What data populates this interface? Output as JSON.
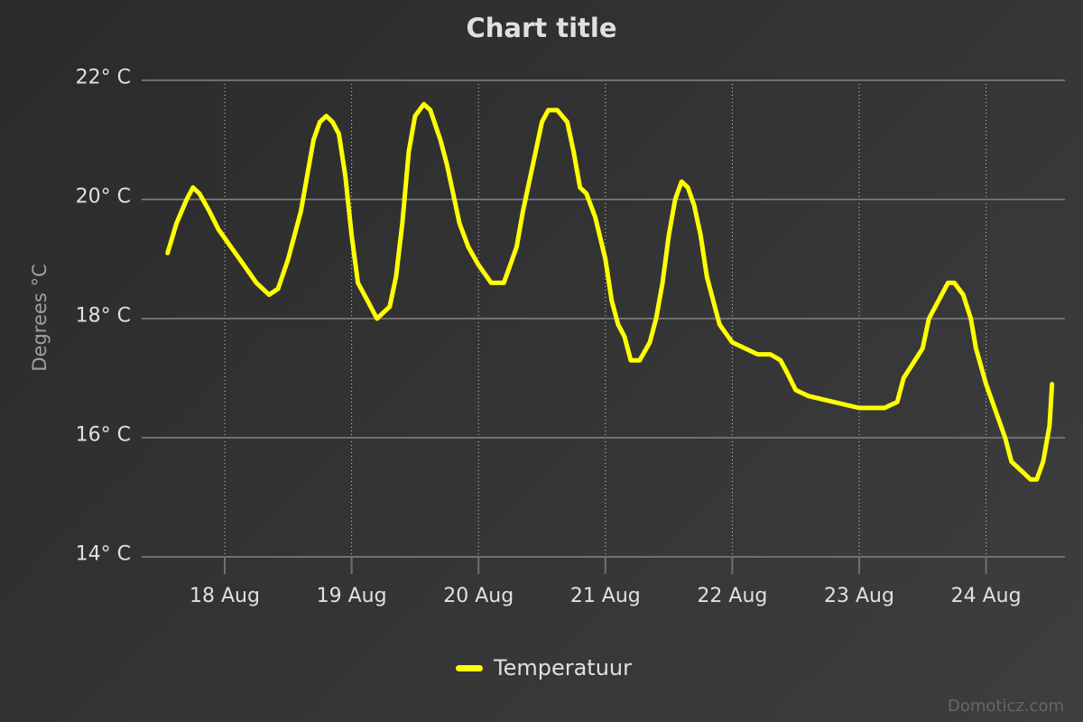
{
  "chart": {
    "title": "Chart title",
    "yaxis_title": "Degrees °C",
    "credits": "Domoticz.com",
    "background": [
      "#2a2a2b",
      "#3e3e40"
    ],
    "grid_color": "#707073",
    "series_color": "#ffff00"
  },
  "y_ticks": [
    {
      "label": "22° C",
      "value": 22
    },
    {
      "label": "20° C",
      "value": 20
    },
    {
      "label": "18° C",
      "value": 18
    },
    {
      "label": "16° C",
      "value": 16
    },
    {
      "label": "14° C",
      "value": 14
    }
  ],
  "x_ticks": [
    {
      "label": "18 Aug",
      "value": 0
    },
    {
      "label": "19 Aug",
      "value": 1
    },
    {
      "label": "20 Aug",
      "value": 2
    },
    {
      "label": "21 Aug",
      "value": 3
    },
    {
      "label": "22 Aug",
      "value": 4
    },
    {
      "label": "23 Aug",
      "value": 5
    },
    {
      "label": "24 Aug",
      "value": 6
    }
  ],
  "legend": [
    {
      "label": "Temperatuur",
      "color": "#ffff00"
    }
  ],
  "chart_data": {
    "type": "line",
    "title": "Chart title",
    "xlabel": "",
    "ylabel": "Degrees °C",
    "ylim": [
      14,
      22
    ],
    "xlim_days_from_18_Aug": [
      -0.65,
      6.6
    ],
    "categories": [
      "18 Aug",
      "19 Aug",
      "20 Aug",
      "21 Aug",
      "22 Aug",
      "23 Aug",
      "24 Aug"
    ],
    "legend_position": "bottom",
    "grid": true,
    "series": [
      {
        "name": "Temperatuur",
        "color": "#ffff00",
        "x_days_from_18_Aug": [
          -0.45,
          -0.38,
          -0.3,
          -0.25,
          -0.2,
          -0.12,
          -0.05,
          0.05,
          0.15,
          0.25,
          0.35,
          0.42,
          0.5,
          0.6,
          0.7,
          0.75,
          0.8,
          0.85,
          0.9,
          0.95,
          1.0,
          1.05,
          1.1,
          1.2,
          1.3,
          1.35,
          1.4,
          1.45,
          1.5,
          1.57,
          1.62,
          1.7,
          1.75,
          1.8,
          1.85,
          1.92,
          2.0,
          2.1,
          2.2,
          2.3,
          2.35,
          2.45,
          2.5,
          2.55,
          2.62,
          2.7,
          2.75,
          2.8,
          2.85,
          2.92,
          3.0,
          3.05,
          3.1,
          3.15,
          3.2,
          3.27,
          3.35,
          3.4,
          3.45,
          3.5,
          3.55,
          3.6,
          3.65,
          3.7,
          3.75,
          3.8,
          3.9,
          4.0,
          4.1,
          4.2,
          4.3,
          4.38,
          4.43,
          4.5,
          4.6,
          4.8,
          5.0,
          5.2,
          5.3,
          5.35,
          5.5,
          5.55,
          5.65,
          5.7,
          5.75,
          5.82,
          5.88,
          5.92,
          6.0,
          6.1,
          6.15,
          6.2,
          6.3,
          6.35,
          6.4,
          6.45,
          6.5,
          6.52
        ],
        "values": [
          19.1,
          19.6,
          20.0,
          20.2,
          20.1,
          19.8,
          19.5,
          19.2,
          18.9,
          18.6,
          18.4,
          18.5,
          19.0,
          19.8,
          21.0,
          21.3,
          21.4,
          21.3,
          21.1,
          20.4,
          19.4,
          18.6,
          18.4,
          18.0,
          18.2,
          18.7,
          19.6,
          20.8,
          21.4,
          21.6,
          21.5,
          21.0,
          20.6,
          20.1,
          19.6,
          19.2,
          18.9,
          18.6,
          18.6,
          19.2,
          19.8,
          20.8,
          21.3,
          21.5,
          21.5,
          21.3,
          20.8,
          20.2,
          20.1,
          19.7,
          19.0,
          18.3,
          17.9,
          17.7,
          17.3,
          17.3,
          17.6,
          18.0,
          18.6,
          19.4,
          20.0,
          20.3,
          20.2,
          19.9,
          19.4,
          18.7,
          17.9,
          17.6,
          17.5,
          17.4,
          17.4,
          17.3,
          17.1,
          16.8,
          16.7,
          16.6,
          16.5,
          16.5,
          16.6,
          17.0,
          17.5,
          18.0,
          18.4,
          18.6,
          18.6,
          18.4,
          18.0,
          17.5,
          16.9,
          16.3,
          16.0,
          15.6,
          15.4,
          15.3,
          15.3,
          15.6,
          16.2,
          16.9
        ]
      }
    ]
  }
}
